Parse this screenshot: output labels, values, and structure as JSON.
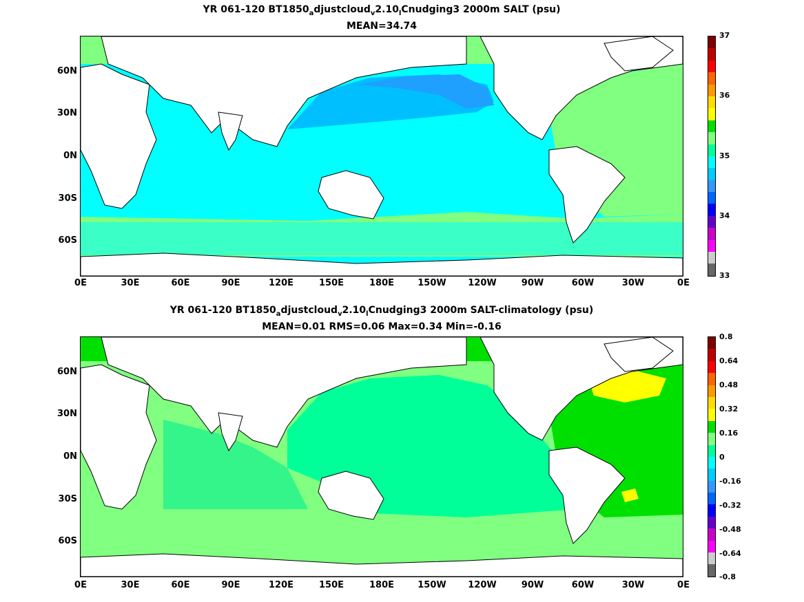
{
  "panels": [
    {
      "title_parts": [
        "YR 061-120 BT1850",
        "a",
        "djustcloud",
        "v",
        "2.10",
        "l",
        "Cnudging3 2000m SALT (psu)"
      ],
      "subtitle": "MEAN=34.74",
      "colorbar": {
        "labels": [
          "37",
          "36",
          "35",
          "34",
          "33"
        ],
        "colors": [
          "#800000",
          "#c00000",
          "#ff0000",
          "#ff6600",
          "#ff9900",
          "#ffdd00",
          "#ffff00",
          "#00e000",
          "#80ff80",
          "#00ff99",
          "#00ffff",
          "#00ccff",
          "#3399ff",
          "#0066ff",
          "#0000ff",
          "#6600cc",
          "#cc00cc",
          "#ff00ff",
          "#cccccc",
          "#666666"
        ]
      },
      "ocean_regions": [
        {
          "name": "north-pacific-gyre",
          "color": "#00bfff"
        },
        {
          "name": "subpolar-pacific-band",
          "color": "#1fa0ff"
        },
        {
          "name": "tropical-south-pacific-indian",
          "color": "#00ffff"
        },
        {
          "name": "atlantic",
          "color": "#80ff80"
        },
        {
          "name": "arctic",
          "color": "#80ff80"
        },
        {
          "name": "southern-band",
          "color": "#80ff80"
        }
      ]
    },
    {
      "title_parts": [
        "YR 061-120 BT1850",
        "a",
        "djustcloud",
        "v",
        "2.10",
        "l",
        "Cnudging3 2000m SALT-climatology (psu)"
      ],
      "subtitle": "MEAN=0.01   RMS=0.06   Max=0.34   Min=-0.16",
      "colorbar": {
        "labels": [
          "0.8",
          "0.64",
          "0.48",
          "0.32",
          "0.16",
          "0",
          "-0.16",
          "-0.32",
          "-0.48",
          "-0.64",
          "-0.8"
        ],
        "colors": [
          "#800000",
          "#c00000",
          "#ff0000",
          "#ff6600",
          "#ff9900",
          "#ffdd00",
          "#ffff00",
          "#00e000",
          "#80ff80",
          "#00ff99",
          "#00ffff",
          "#00ccff",
          "#3399ff",
          "#0066ff",
          "#0000ff",
          "#6600cc",
          "#cc00cc",
          "#ff00ff",
          "#cccccc",
          "#666666"
        ]
      },
      "ocean_regions": [
        {
          "name": "pacific",
          "color": "#00ff99"
        },
        {
          "name": "north-atlantic-warm-patch",
          "color": "#ffff00"
        },
        {
          "name": "atlantic",
          "color": "#00e000"
        },
        {
          "name": "southern-band",
          "color": "#80ff80"
        },
        {
          "name": "arctic",
          "color": "#00e000"
        }
      ]
    }
  ],
  "axes": {
    "x_labels": [
      "0E",
      "30E",
      "60E",
      "90E",
      "120E",
      "150E",
      "180E",
      "150W",
      "120W",
      "90W",
      "60W",
      "30W",
      "0E"
    ],
    "y_labels": [
      "60N",
      "30N",
      "0N",
      "30S",
      "60S"
    ]
  }
}
